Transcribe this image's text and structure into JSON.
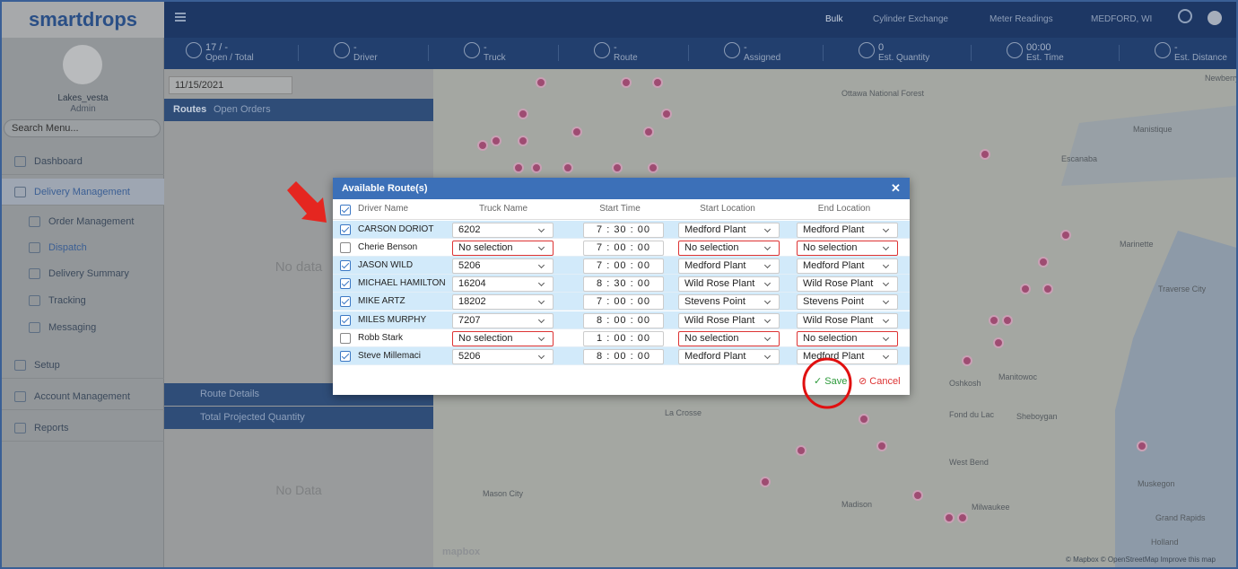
{
  "sidebar": {
    "logo": "smartdrops",
    "user": "Lakes_vesta",
    "role": "Admin",
    "search": "Search Menu...",
    "menu": [
      "Dashboard",
      "Delivery Management",
      "Order Management",
      "Dispatch",
      "Delivery Summary",
      "Tracking",
      "Messaging",
      "Setup",
      "Account Management",
      "Reports"
    ]
  },
  "topbar": {
    "bulk": "Bulk",
    "cylinder": "Cylinder Exchange",
    "meter": "Meter Readings",
    "location": "MEDFORD, WI"
  },
  "stats": [
    {
      "value": "17 / -",
      "label": "Open / Total"
    },
    {
      "value": "-",
      "label": "Driver"
    },
    {
      "value": "-",
      "label": "Truck"
    },
    {
      "value": "-",
      "label": "Route"
    },
    {
      "value": "-",
      "label": "Assigned"
    },
    {
      "value": "0",
      "label": "Est. Quantity"
    },
    {
      "value": "00:00",
      "label": "Est. Time"
    },
    {
      "value": "-",
      "label": "Est. Distance"
    }
  ],
  "panel": {
    "date": "11/15/2021",
    "tabs": [
      "Routes",
      "Open Orders"
    ],
    "empty": "No data",
    "route_details": "Route Details",
    "projected": "Total Projected Quantity",
    "empty2": "No Data"
  },
  "map": {
    "labels": [
      "Newberry",
      "Ottawa National Forest",
      "Manistique",
      "Escanaba",
      "Marinette",
      "Traverse City",
      "Manitowoc",
      "Oshkosh",
      "Fond du Lac",
      "Sheboygan",
      "La Crosse",
      "West Bend",
      "Mason City",
      "Madison",
      "Milwaukee",
      "Muskegon",
      "Grand Rapids",
      "Holland"
    ],
    "attribution": "© Mapbox © OpenStreetMap Improve this map",
    "brand": "mapbox"
  },
  "modal": {
    "title": "Available Route(s)",
    "headers": [
      "Driver Name",
      "Truck Name",
      "Start Time",
      "Start Location",
      "End Location"
    ],
    "rows": [
      {
        "checked": true,
        "driver": "CARSON DORIOT",
        "truck": "6202",
        "time": "7 : 30 : 00",
        "start": "Medford Plant",
        "end": "Medford Plant"
      },
      {
        "checked": false,
        "driver": "Cherie Benson",
        "truck": "No selection",
        "time": "7 : 00 : 00",
        "start": "No selection",
        "end": "No selection"
      },
      {
        "checked": true,
        "driver": "JASON WILD",
        "truck": "5206",
        "time": "7 : 00 : 00",
        "start": "Medford Plant",
        "end": "Medford Plant"
      },
      {
        "checked": true,
        "driver": "MICHAEL HAMILTON",
        "truck": "16204",
        "time": "8 : 30 : 00",
        "start": "Wild Rose Plant",
        "end": "Wild Rose Plant"
      },
      {
        "checked": true,
        "driver": "MIKE ARTZ",
        "truck": "18202",
        "time": "7 : 00 : 00",
        "start": "Stevens Point",
        "end": "Stevens Point"
      },
      {
        "checked": true,
        "driver": "MILES MURPHY",
        "truck": "7207",
        "time": "8 : 00 : 00",
        "start": "Wild Rose Plant",
        "end": "Wild Rose Plant"
      },
      {
        "checked": false,
        "driver": "Robb Stark",
        "truck": "No selection",
        "time": "1 : 00 : 00",
        "start": "No selection",
        "end": "No selection"
      },
      {
        "checked": true,
        "driver": "Steve Millemaci",
        "truck": "5206",
        "time": "8 : 00 : 00",
        "start": "Medford Plant",
        "end": "Medford Plant"
      }
    ],
    "save": "Save",
    "cancel": "Cancel"
  }
}
